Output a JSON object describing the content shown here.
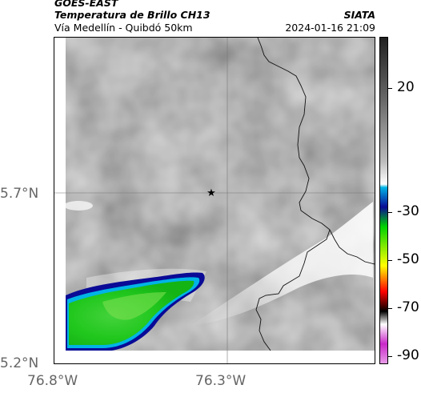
{
  "header": {
    "satellite": "GOES-EAST",
    "product": "Temperatura de Brillo CH13",
    "region": "Vía Medellín - Quibdó 50km",
    "agency": "SIATA",
    "datetime": "2024-01-16 21:09"
  },
  "axes": {
    "lat_ticks": [
      "5.7°N",
      "5.2°N"
    ],
    "lon_ticks": [
      "76.8°W",
      "76.3°W"
    ]
  },
  "marker": {
    "symbol": "★"
  },
  "colorbar": {
    "labels": [
      "20",
      "-30",
      "-50",
      "-70",
      "-90"
    ],
    "colors": [
      "#202020",
      "#6c6c6c",
      "#bcbcbc",
      "#ffffff",
      "#00b4e6",
      "#0a0a96",
      "#00d200",
      "#ffff00",
      "#ff0000",
      "#000000",
      "#c828c8"
    ]
  }
}
